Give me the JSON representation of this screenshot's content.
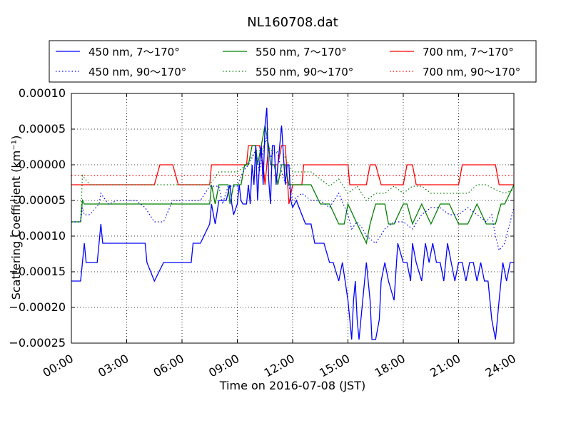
{
  "chart_data": {
    "type": "line",
    "title": "NL160708.dat",
    "xlabel": "Time on 2016-07-08 (JST)",
    "ylabel": "Scattering Coefficient (km⁻¹)",
    "x_unit": "hours",
    "xlim": [
      0,
      24
    ],
    "ylim": [
      -0.00025,
      0.0001
    ],
    "xticks": [
      0,
      3,
      6,
      9,
      12,
      15,
      18,
      21,
      24
    ],
    "xtick_labels": [
      "00:00",
      "03:00",
      "06:00",
      "09:00",
      "12:00",
      "15:00",
      "18:00",
      "21:00",
      "24:00"
    ],
    "yticks": [
      -0.00025,
      -0.0002,
      -0.00015,
      -0.0001,
      -5e-05,
      0.0,
      5e-05,
      0.0001
    ],
    "ytick_labels": [
      "−0.00025",
      "−0.00020",
      "−0.00015",
      "−0.00010",
      "−0.00005",
      "0.00000",
      "0.00005",
      "0.00010"
    ],
    "grid": true,
    "legend_position": "top",
    "series": [
      {
        "name": "450 nm, 7～170°",
        "color": "#0000ff",
        "style": "solid",
        "x": [
          0,
          0.5,
          0.6,
          0.7,
          0.8,
          1.4,
          1.5,
          1.6,
          1.7,
          2.0,
          2.1,
          3.0,
          3.5,
          3.8,
          4.0,
          4.1,
          4.5,
          5.0,
          5.5,
          6.0,
          6.5,
          6.6,
          7.0,
          7.5,
          7.6,
          7.8,
          8.0,
          8.4,
          8.6,
          8.7,
          8.8,
          9.0,
          9.1,
          9.2,
          9.3,
          9.5,
          9.6,
          9.7,
          9.8,
          9.9,
          10.0,
          10.1,
          10.2,
          10.3,
          10.4,
          10.5,
          10.6,
          10.7,
          10.8,
          10.9,
          11.0,
          11.1,
          11.2,
          11.3,
          11.4,
          11.6,
          11.7,
          11.8,
          11.9,
          12.0,
          12.2,
          12.5,
          12.7,
          13.0,
          13.2,
          13.5,
          13.7,
          14.0,
          14.2,
          14.5,
          14.7,
          15.0,
          15.1,
          15.2,
          15.3,
          15.4,
          15.5,
          15.6,
          15.8,
          16.0,
          16.2,
          16.3,
          16.5,
          16.7,
          16.8,
          17.0,
          17.2,
          17.5,
          17.7,
          18.0,
          18.2,
          18.4,
          18.5,
          18.7,
          19.0,
          19.2,
          19.4,
          19.6,
          19.8,
          20.0,
          20.2,
          20.4,
          20.6,
          20.8,
          21.0,
          21.2,
          21.4,
          21.6,
          21.8,
          22.0,
          22.2,
          22.4,
          22.6,
          22.8,
          23.0,
          23.2,
          23.4,
          23.6,
          23.8,
          24.0
        ],
        "y": [
          -0.000163,
          -0.000163,
          -0.000137,
          -0.00011,
          -0.000137,
          -0.000137,
          -0.00011,
          -8.3e-05,
          -0.00011,
          -0.00011,
          -0.00011,
          -0.00011,
          -0.00011,
          -0.00011,
          -0.00011,
          -0.000137,
          -0.000163,
          -0.000137,
          -0.000137,
          -0.000137,
          -0.000137,
          -0.00011,
          -0.00011,
          -8.3e-05,
          -5.5e-05,
          -8.3e-05,
          -5e-05,
          -5e-05,
          -2.8e-05,
          -5.5e-05,
          -7e-05,
          -5.5e-05,
          -2.8e-05,
          -5e-05,
          -5.5e-05,
          -5.5e-05,
          -2.8e-05,
          -5.5e-05,
          0.0,
          -2.8e-05,
          2.7e-05,
          -5e-05,
          0.0,
          2.7e-05,
          -2.8e-05,
          5.5e-05,
          8e-05,
          -2e-05,
          -5.5e-05,
          2.7e-05,
          2.7e-05,
          -2.8e-05,
          0.0,
          2.7e-05,
          5.5e-05,
          -2.8e-05,
          0.0,
          0.0,
          -5e-05,
          -6e-05,
          -5e-05,
          -7e-05,
          -8.3e-05,
          -8.3e-05,
          -0.00011,
          -0.00011,
          -0.00011,
          -0.000137,
          -0.000137,
          -0.000163,
          -0.000137,
          -0.00019,
          -0.000217,
          -0.000245,
          -0.00019,
          -0.000163,
          -0.000217,
          -0.000245,
          -0.00019,
          -0.000137,
          -0.00019,
          -0.000245,
          -0.000245,
          -0.000217,
          -0.000163,
          -0.000137,
          -0.000163,
          -0.00019,
          -0.00011,
          -0.000137,
          -0.000137,
          -0.000163,
          -0.00011,
          -0.000137,
          -0.000163,
          -0.00011,
          -0.000137,
          -0.00011,
          -0.000137,
          -0.000137,
          -0.000163,
          -0.00011,
          -0.000137,
          -0.000163,
          -0.000137,
          -0.000137,
          -0.000163,
          -0.000137,
          -0.000137,
          -0.000163,
          -0.000137,
          -0.000163,
          -0.000163,
          -0.000217,
          -0.000245,
          -0.00019,
          -0.000137,
          -0.000163,
          -0.000137,
          -0.000137
        ]
      },
      {
        "name": "450 nm, 90～170°",
        "color": "#0000ff",
        "style": "dotted",
        "x": [
          0,
          0.5,
          0.6,
          0.7,
          1.0,
          1.5,
          1.6,
          2.0,
          2.5,
          3.0,
          3.5,
          4.0,
          4.5,
          5.0,
          5.5,
          6.0,
          6.5,
          7.0,
          7.5,
          8.0,
          8.2,
          8.5,
          9.0,
          9.3,
          9.6,
          9.8,
          10.0,
          10.2,
          10.4,
          10.6,
          10.8,
          11.0,
          11.2,
          11.5,
          11.8,
          12.0,
          12.5,
          13.0,
          13.5,
          14.0,
          14.5,
          15.0,
          15.2,
          15.5,
          15.8,
          16.0,
          16.5,
          17.0,
          17.5,
          18.0,
          18.5,
          19.0,
          19.5,
          20.0,
          20.5,
          21.0,
          21.5,
          22.0,
          22.5,
          22.8,
          23.0,
          23.2,
          23.5,
          24.0
        ],
        "y": [
          -8e-05,
          -8e-05,
          -6e-05,
          -7e-05,
          -7e-05,
          -5.5e-05,
          -4e-05,
          -5.5e-05,
          -5e-05,
          -5e-05,
          -5e-05,
          -6e-05,
          -8e-05,
          -8e-05,
          -5e-05,
          -5e-05,
          -5e-05,
          -5e-05,
          -3e-05,
          -3e-05,
          -5.5e-05,
          -3e-05,
          -3e-05,
          -1e-05,
          0.0,
          1e-05,
          2e-05,
          -1e-05,
          2e-05,
          4e-05,
          1e-05,
          2e-05,
          1.5e-05,
          -2e-05,
          -3e-05,
          -5e-05,
          -4e-05,
          -5e-05,
          -5e-05,
          -6e-05,
          -4e-05,
          -7e-05,
          -9e-05,
          -8e-05,
          -9e-05,
          -0.0001,
          -0.00011,
          -9e-05,
          -8e-05,
          -8e-05,
          -9e-05,
          -7e-05,
          -6e-05,
          -6e-05,
          -7e-05,
          -7e-05,
          -6e-05,
          -7e-05,
          -8e-05,
          -7e-05,
          -0.0001,
          -0.00012,
          -0.00011,
          -6e-05
        ]
      },
      {
        "name": "550 nm, 7～170°",
        "color": "#008000",
        "style": "solid",
        "x": [
          0,
          0.5,
          0.6,
          0.7,
          0.8,
          1.0,
          2.0,
          3.0,
          4.0,
          4.5,
          5.0,
          6.0,
          7.0,
          7.5,
          7.6,
          7.8,
          8.0,
          8.5,
          8.6,
          8.8,
          9.0,
          9.2,
          9.4,
          9.6,
          9.8,
          10.0,
          10.1,
          10.3,
          10.5,
          10.7,
          10.8,
          11.0,
          11.2,
          11.4,
          11.6,
          11.8,
          12.0,
          12.5,
          13.0,
          13.5,
          14.0,
          14.5,
          14.8,
          15.0,
          15.5,
          16.0,
          16.2,
          16.5,
          17.0,
          17.2,
          17.5,
          18.0,
          18.2,
          18.5,
          19.0,
          19.5,
          20.0,
          20.5,
          21.0,
          21.5,
          22.0,
          22.5,
          23.0,
          23.3,
          23.5,
          24.0
        ],
        "y": [
          -8e-05,
          -8e-05,
          -5e-05,
          -5.5e-05,
          -5.5e-05,
          -5.5e-05,
          -5.5e-05,
          -5.5e-05,
          -5.5e-05,
          -5.5e-05,
          -5.5e-05,
          -5.5e-05,
          -5.5e-05,
          -5.5e-05,
          -2.8e-05,
          -5.5e-05,
          -2.8e-05,
          -2.8e-05,
          -5.5e-05,
          -2.8e-05,
          -2.8e-05,
          -2.8e-05,
          0.0,
          0.0,
          2.7e-05,
          2.7e-05,
          0.0,
          2.7e-05,
          5.5e-05,
          2.7e-05,
          0.0,
          0.0,
          -2.8e-05,
          0.0,
          0.0,
          -2.8e-05,
          -2.8e-05,
          -2.8e-05,
          -2.8e-05,
          -5.5e-05,
          -5.5e-05,
          -8.3e-05,
          -8.3e-05,
          -5.5e-05,
          -8.3e-05,
          -0.00011,
          -8.3e-05,
          -5.5e-05,
          -5.5e-05,
          -8.3e-05,
          -8.3e-05,
          -5.5e-05,
          -5.5e-05,
          -8.3e-05,
          -5.5e-05,
          -8.3e-05,
          -5.5e-05,
          -5.5e-05,
          -8.3e-05,
          -8.3e-05,
          -5.5e-05,
          -8.3e-05,
          -8.3e-05,
          -5.5e-05,
          -5.5e-05,
          -2.8e-05
        ]
      },
      {
        "name": "550 nm, 90～170°",
        "color": "#008000",
        "style": "dotted",
        "x": [
          0,
          0.5,
          0.6,
          1.0,
          2.0,
          3.0,
          4.0,
          5.0,
          6.0,
          7.0,
          7.5,
          8.0,
          8.5,
          9.0,
          9.5,
          10.0,
          10.3,
          10.6,
          10.8,
          11.0,
          11.5,
          12.0,
          12.5,
          13.0,
          13.5,
          14.0,
          14.5,
          15.0,
          15.5,
          16.0,
          16.5,
          17.0,
          17.5,
          18.0,
          18.5,
          19.0,
          19.5,
          20.0,
          20.5,
          21.0,
          21.5,
          22.0,
          22.5,
          23.0,
          23.5,
          24.0
        ],
        "y": [
          -8e-05,
          -8e-05,
          -1.5e-05,
          -2.8e-05,
          -2.8e-05,
          -2.8e-05,
          -2.8e-05,
          -2.8e-05,
          -2.8e-05,
          -2.8e-05,
          -2.8e-05,
          -1e-05,
          -1e-05,
          -1e-05,
          0.0,
          2e-05,
          2e-05,
          3.5e-05,
          2e-05,
          2e-05,
          1.5e-05,
          -1e-05,
          -1e-05,
          -1e-05,
          -2e-05,
          -3e-05,
          -2e-05,
          -4e-05,
          -3e-05,
          -5e-05,
          -4e-05,
          -4e-05,
          -3e-05,
          -4e-05,
          -3e-05,
          -3e-05,
          -4e-05,
          -4e-05,
          -4e-05,
          -4e-05,
          -4e-05,
          -2.8e-05,
          -2.8e-05,
          -3.5e-05,
          -4e-05,
          -3.5e-05
        ]
      },
      {
        "name": "700 nm, 7～170°",
        "color": "#ff0000",
        "style": "solid",
        "x": [
          0,
          4.5,
          4.8,
          5.5,
          5.8,
          7.5,
          7.6,
          8.5,
          8.6,
          8.8,
          9.0,
          9.5,
          9.6,
          10.0,
          10.2,
          10.4,
          10.5,
          10.7,
          10.8,
          11.0,
          11.2,
          11.4,
          11.6,
          11.8,
          12.0,
          12.5,
          12.6,
          15.0,
          15.1,
          16.0,
          16.2,
          16.5,
          16.8,
          18.0,
          18.2,
          18.5,
          18.7,
          21.0,
          21.2,
          22.0,
          22.2,
          23.0,
          23.2,
          23.5,
          24.0
        ],
        "y": [
          -2.8e-05,
          -2.8e-05,
          0.0,
          0.0,
          -2.8e-05,
          -2.8e-05,
          0.0,
          0.0,
          0.0,
          0.0,
          0.0,
          0.0,
          2.7e-05,
          2.7e-05,
          2.7e-05,
          0.0,
          -2.8e-05,
          2.7e-05,
          0.0,
          0.0,
          0.0,
          2.7e-05,
          2.7e-05,
          -5.5e-05,
          -2.8e-05,
          -2.8e-05,
          0.0,
          0.0,
          -2.8e-05,
          -2.8e-05,
          0.0,
          0.0,
          -2.8e-05,
          -2.8e-05,
          0.0,
          0.0,
          -2.8e-05,
          -2.8e-05,
          0.0,
          0.0,
          0.0,
          0.0,
          -2.8e-05,
          -2.8e-05,
          -2.8e-05
        ]
      },
      {
        "name": "700 nm, 90～170°",
        "color": "#ff0000",
        "style": "dotted",
        "x": [
          0,
          0.5,
          1.0,
          2.0,
          3.0,
          4.0,
          5.0,
          6.0,
          7.0,
          8.0,
          9.0,
          10.0,
          11.0,
          12.0,
          13.0,
          14.0,
          15.0,
          16.0,
          17.0,
          18.0,
          19.0,
          20.0,
          21.0,
          22.0,
          23.0,
          24.0
        ],
        "y": [
          -1.5e-05,
          -1.5e-05,
          -1.5e-05,
          -1.5e-05,
          -1.5e-05,
          -1.5e-05,
          -1.5e-05,
          -1.5e-05,
          -1.5e-05,
          -1.5e-05,
          -1.5e-05,
          -1.5e-05,
          -1.5e-05,
          -1.5e-05,
          -1.5e-05,
          -1.5e-05,
          -1.5e-05,
          -1.5e-05,
          -1.5e-05,
          -1.5e-05,
          -1.5e-05,
          -1.5e-05,
          -1.5e-05,
          -1.5e-05,
          -1.5e-05,
          -1.5e-05
        ]
      }
    ]
  }
}
